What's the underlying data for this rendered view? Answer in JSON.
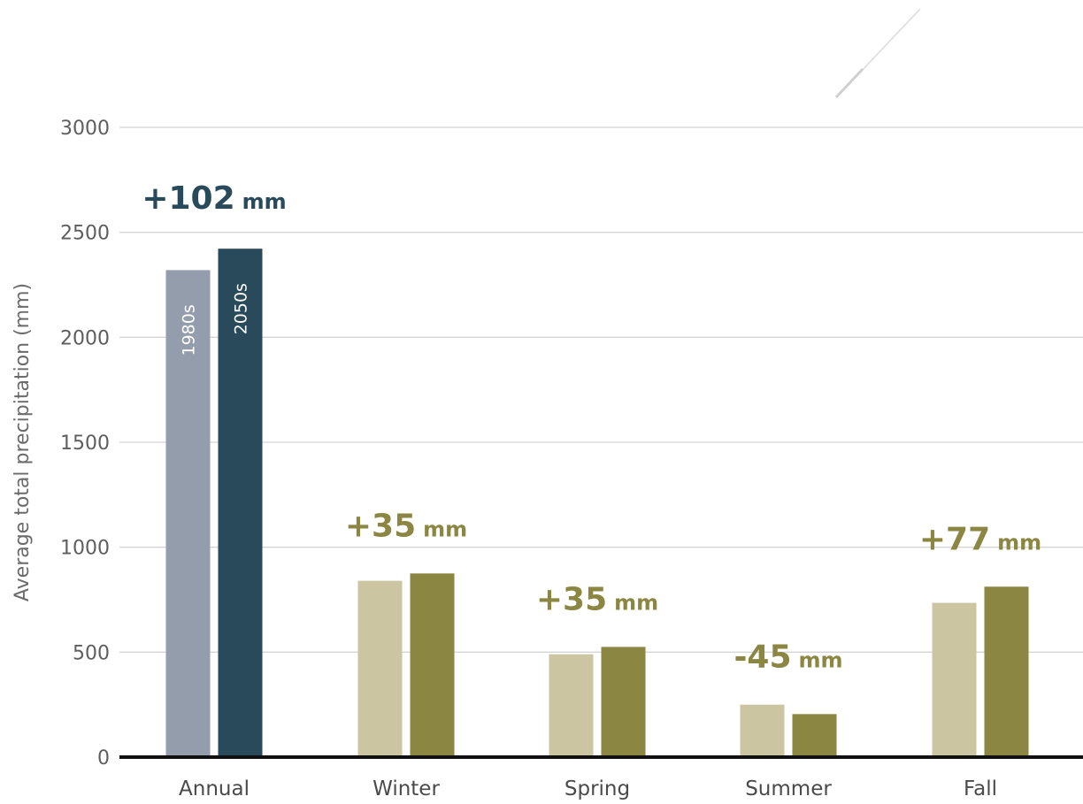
{
  "chart_data": {
    "type": "bar",
    "title": "",
    "xlabel": "",
    "ylabel": "Average total precipitation (mm)",
    "ylim": [
      0,
      3000
    ],
    "yticks": [
      0,
      500,
      1000,
      1500,
      2000,
      2500,
      3000
    ],
    "ytick_labels": [
      "0",
      "500",
      "1000",
      "1500",
      "2000",
      "2500",
      "3000"
    ],
    "grid": true,
    "legend": "none",
    "categories": [
      "Annual",
      "Winter",
      "Spring",
      "Summer",
      "Fall"
    ],
    "series": [
      {
        "name": "1980s",
        "values": [
          2320,
          840,
          490,
          250,
          735
        ]
      },
      {
        "name": "2050s",
        "values": [
          2422,
          875,
          525,
          205,
          812
        ]
      }
    ],
    "bar_labels": [
      "1980s",
      "2050s"
    ],
    "annotations": [
      {
        "category": "Annual",
        "value": "+102",
        "unit": "mm"
      },
      {
        "category": "Winter",
        "value": "+35",
        "unit": "mm"
      },
      {
        "category": "Spring",
        "value": "+35",
        "unit": "mm"
      },
      {
        "category": "Summer",
        "value": "-45",
        "unit": "mm"
      },
      {
        "category": "Fall",
        "value": "+77",
        "unit": "mm"
      }
    ],
    "colors": {
      "annual_1980s": "#939dab",
      "annual_2050s": "#294a5b",
      "season_1980s": "#cbc6a1",
      "season_2050s": "#8b8641",
      "annual_annotation": "#294a5b",
      "season_annotation": "#8b8641",
      "gridline": "#d5d5d5",
      "baseline": "#111111"
    }
  }
}
